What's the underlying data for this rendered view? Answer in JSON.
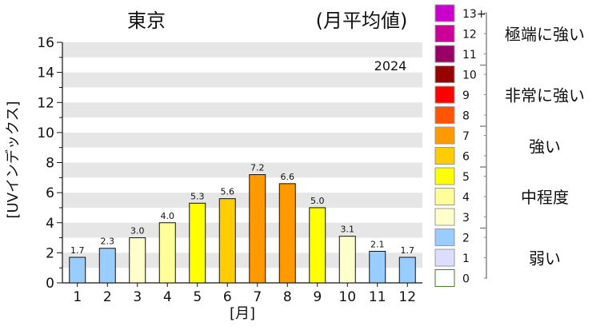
{
  "title": "東京",
  "subtitle": "(月平均値)",
  "year_label": "2024",
  "chart_data": {
    "type": "bar",
    "title": "東京",
    "subtitle": "(月平均値)",
    "xlabel": "[月]",
    "ylabel": "[UVインデックス]",
    "ylim": [
      0,
      16
    ],
    "yticks": [
      "0",
      "2",
      "4",
      "6",
      "8",
      "10",
      "12",
      "14",
      "16"
    ],
    "categories": [
      "1",
      "2",
      "3",
      "4",
      "5",
      "6",
      "7",
      "8",
      "9",
      "10",
      "11",
      "12"
    ],
    "values": [
      1.7,
      2.3,
      3.0,
      4.0,
      5.3,
      5.6,
      7.2,
      6.6,
      5.0,
      3.1,
      2.1,
      1.7
    ],
    "data_labels": [
      "1.7",
      "2.3",
      "3.0",
      "4.0",
      "5.3",
      "5.6",
      "7.2",
      "6.6",
      "5.0",
      "3.1",
      "2.1",
      "1.7"
    ],
    "bar_colors": [
      "#99ccff",
      "#99ccff",
      "#ffffcc",
      "#ffff99",
      "#ffff00",
      "#ffcc00",
      "#ff9900",
      "#ff9900",
      "#ffff00",
      "#ffffcc",
      "#99ccff",
      "#99ccff"
    ],
    "grid": "alternating horizontal bands",
    "band_color": "#e6e6e6"
  },
  "legend": {
    "scale": [
      {
        "label": "13+",
        "color": "#cc00cc"
      },
      {
        "label": "12",
        "color": "#cc0099"
      },
      {
        "label": "11",
        "color": "#990066"
      },
      {
        "label": "10",
        "color": "#990000"
      },
      {
        "label": "9",
        "color": "#ff0000"
      },
      {
        "label": "8",
        "color": "#ff5500"
      },
      {
        "label": "7",
        "color": "#ff9900"
      },
      {
        "label": "6",
        "color": "#ffcc00"
      },
      {
        "label": "5",
        "color": "#ffff00"
      },
      {
        "label": "4",
        "color": "#ffff99"
      },
      {
        "label": "3",
        "color": "#ffffcc"
      },
      {
        "label": "2",
        "color": "#99ccff"
      },
      {
        "label": "1",
        "color": "#ddddff"
      },
      {
        "label": "0",
        "color": "#ffffff"
      }
    ],
    "categories": [
      "極端に強い",
      "非常に強い",
      "強い",
      "中程度",
      "弱い"
    ]
  }
}
